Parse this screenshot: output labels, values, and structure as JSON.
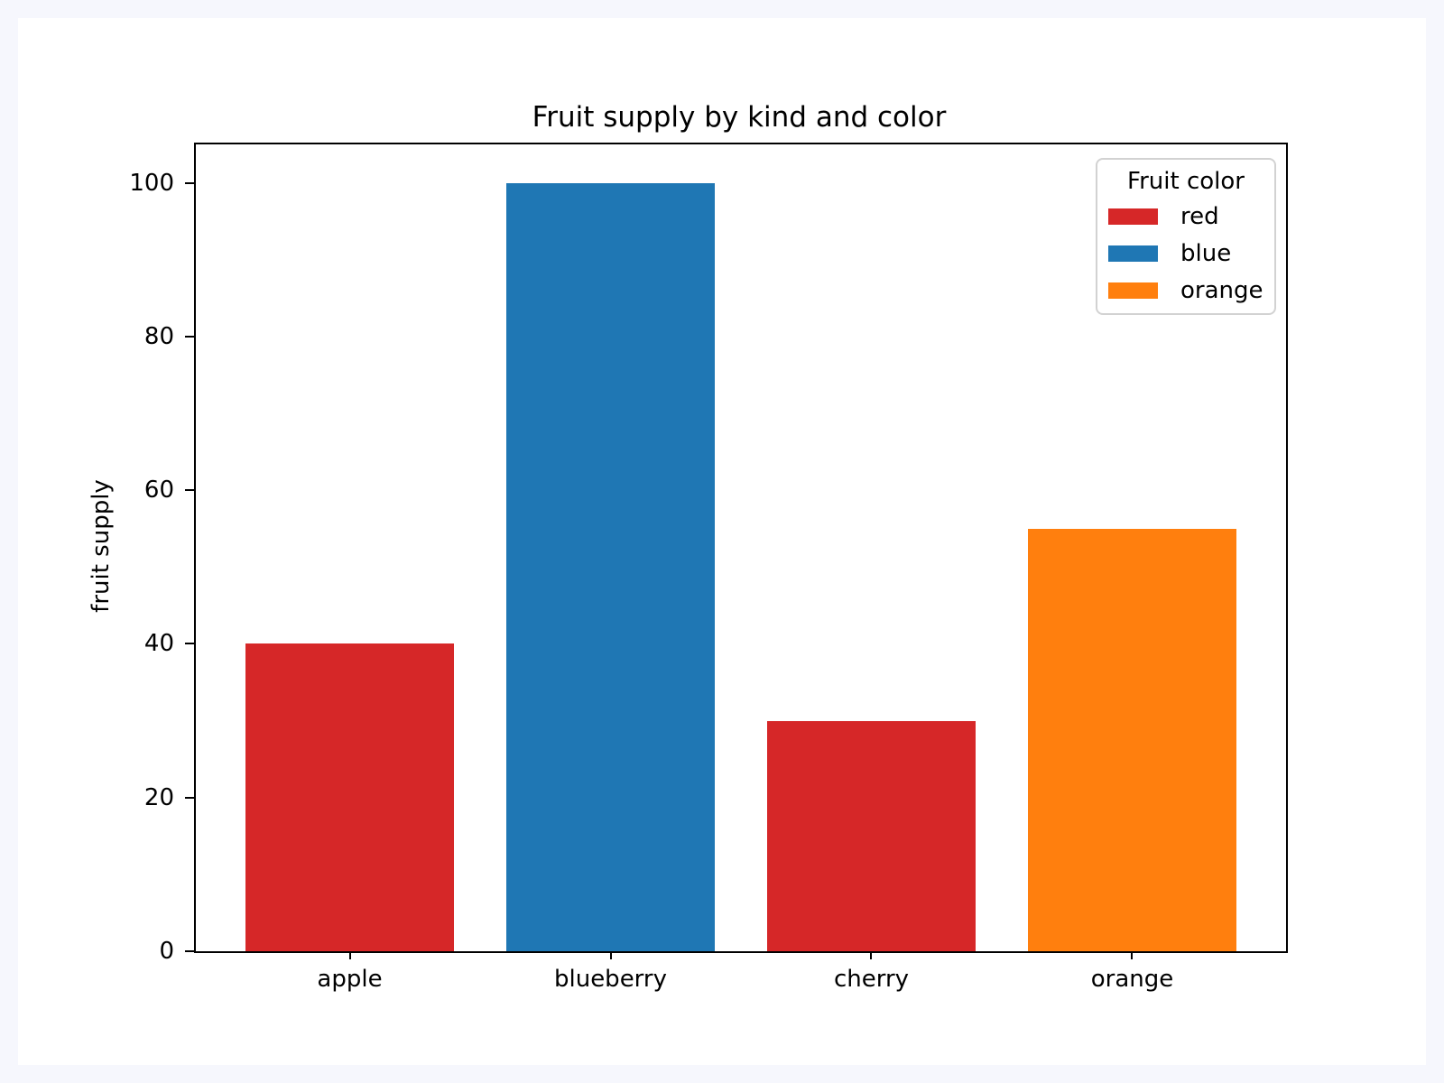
{
  "chart_data": {
    "type": "bar",
    "title": "Fruit supply by kind and color",
    "xlabel": "",
    "ylabel": "fruit supply",
    "categories": [
      "apple",
      "blueberry",
      "cherry",
      "orange"
    ],
    "values": [
      40,
      100,
      30,
      55
    ],
    "bar_colors": [
      "#d62728",
      "#1f77b4",
      "#d62728",
      "#ff7f0e"
    ],
    "bar_width": 0.8,
    "xlim": [
      -0.59,
      3.59
    ],
    "ylim": [
      0,
      105
    ],
    "yticks": [
      0,
      20,
      40,
      60,
      80,
      100
    ],
    "grid": false,
    "legend": {
      "title": "Fruit color",
      "position": "upper right",
      "entries": [
        {
          "label": "red",
          "color": "#d62728"
        },
        {
          "label": "blue",
          "color": "#1f77b4"
        },
        {
          "label": "orange",
          "color": "#ff7f0e"
        }
      ]
    }
  },
  "colors": {
    "page_background": "#f6f7fd",
    "figure_background": "#ffffff",
    "axis": "#000000"
  }
}
